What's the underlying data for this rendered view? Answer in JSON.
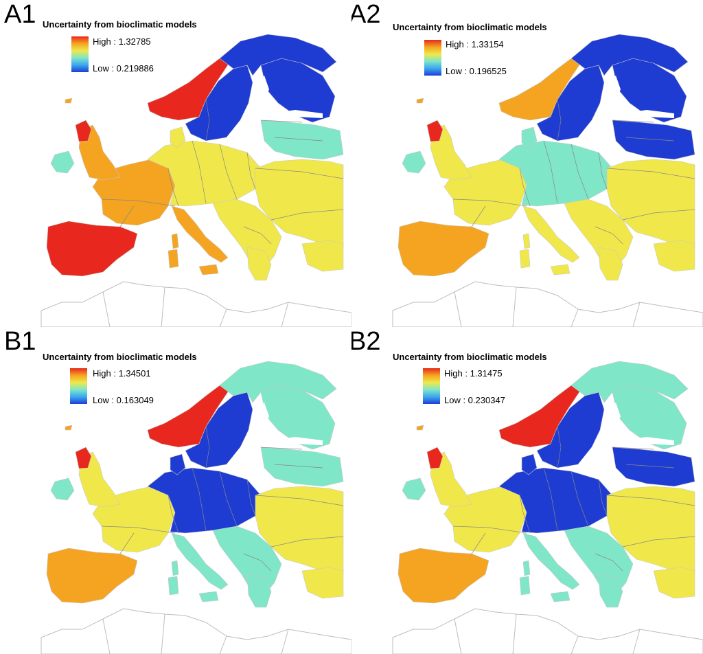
{
  "color_ramp": {
    "high_color": "#e8281e",
    "mid_high_color": "#f4a420",
    "mid_color": "#f0e84a",
    "mid_low_color": "#7fe6c8",
    "low_low_color": "#3aa8f0",
    "low_color": "#1e3cd2"
  },
  "panels": [
    {
      "letter": "A1",
      "legend_title": "Uncertainty from bioclimatic models",
      "high_label": "High : 1.32785",
      "low_label": "Low : 0.219886",
      "high_value": 1.32785,
      "low_value": 0.219886,
      "regional_levels": {
        "iberia": "high",
        "france": "mid-high",
        "central_europe": "mid",
        "scandinavia_west": "high",
        "scandinavia_east": "low",
        "finland": "low",
        "baltics": "mid-low",
        "italy": "mid-high",
        "balkans": "mid",
        "east": "mid"
      }
    },
    {
      "letter": "A2",
      "legend_title": "Uncertainty from bioclimatic models",
      "high_label": "High : 1.33154",
      "low_label": "Low : 0.196525",
      "high_value": 1.33154,
      "low_value": 0.196525,
      "regional_levels": {
        "iberia": "mid-high",
        "france": "mid",
        "central_europe": "mid-low",
        "scandinavia_west": "mid-high",
        "scandinavia_east": "low",
        "finland": "low",
        "baltics": "low",
        "italy": "mid",
        "balkans": "mid",
        "east": "mid"
      }
    },
    {
      "letter": "B1",
      "legend_title": "Uncertainty from bioclimatic models",
      "high_label": "High : 1.34501",
      "low_label": "Low : 0.163049",
      "high_value": 1.34501,
      "low_value": 0.163049,
      "regional_levels": {
        "iberia": "mid-high",
        "france": "mid",
        "central_europe": "low",
        "scandinavia_west": "high",
        "scandinavia_east": "low",
        "finland": "mid-low",
        "baltics": "mid-low",
        "italy": "mid-low",
        "balkans": "mid-low",
        "east": "mid"
      }
    },
    {
      "letter": "B2",
      "legend_title": "Uncertainty from bioclimatic models",
      "high_label": "High : 1.31475",
      "low_label": "Low : 0.230347",
      "high_value": 1.31475,
      "low_value": 0.230347,
      "regional_levels": {
        "iberia": "mid-high",
        "france": "mid",
        "central_europe": "low",
        "scandinavia_west": "high",
        "scandinavia_east": "low",
        "finland": "mid-low",
        "baltics": "low",
        "italy": "mid-low",
        "balkans": "mid-low",
        "east": "mid"
      }
    }
  ]
}
